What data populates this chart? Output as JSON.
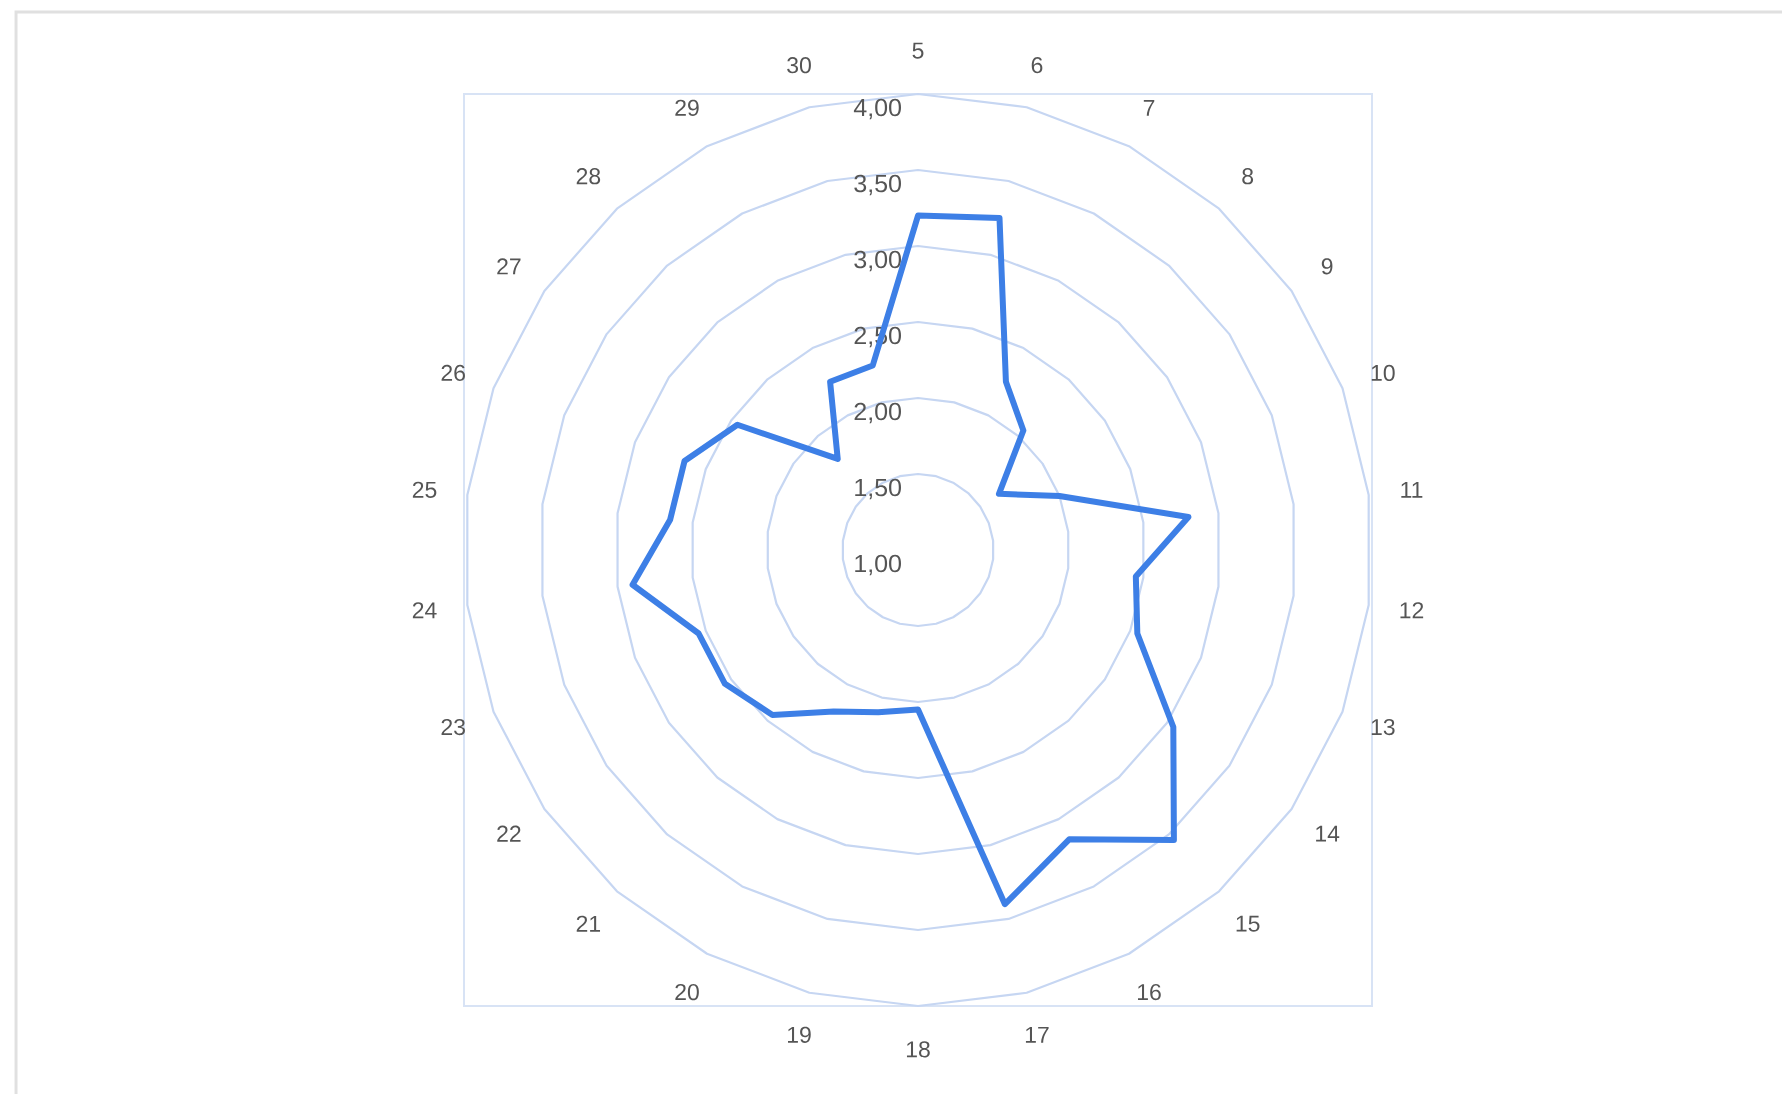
{
  "chart_data": {
    "type": "radar",
    "categories": [
      "5",
      "6",
      "7",
      "8",
      "9",
      "10",
      "11",
      "12",
      "13",
      "14",
      "15",
      "16",
      "17",
      "18",
      "19",
      "20",
      "21",
      "22",
      "23",
      "24",
      "25",
      "26",
      "27",
      "28",
      "29",
      "30"
    ],
    "series": [
      {
        "color": "#3d7fe6",
        "values": [
          3.2,
          3.25,
          2.25,
          2.05,
          1.65,
          2.0,
          2.8,
          2.45,
          2.55,
          3.05,
          3.55,
          3.15,
          3.4,
          2.05,
          2.1,
          2.2,
          2.45,
          2.55,
          2.55,
          2.9,
          2.65,
          2.65,
          2.45,
          1.8,
          2.25,
          2.25
        ]
      }
    ],
    "ylim": [
      1,
      4
    ],
    "yticks": [
      {
        "value": 1,
        "label": "1,00"
      },
      {
        "value": 1.5,
        "label": "1,50"
      },
      {
        "value": 2,
        "label": "2,00"
      },
      {
        "value": 2.5,
        "label": "2,50"
      },
      {
        "value": 3,
        "label": "3,00"
      },
      {
        "value": 3.5,
        "label": "3,50"
      },
      {
        "value": 4,
        "label": "4,00"
      }
    ],
    "grid": true
  }
}
